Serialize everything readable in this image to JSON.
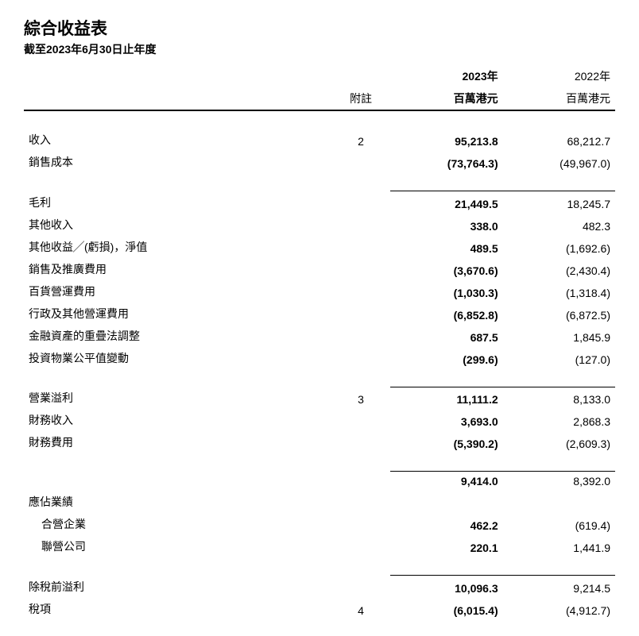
{
  "header": {
    "title": "綜合收益表",
    "subtitle": "截至2023年6月30日止年度"
  },
  "columns": {
    "note": "附註",
    "year_current_1": "2023年",
    "year_current_2": "百萬港元",
    "year_prev_1": "2022年",
    "year_prev_2": "百萬港元"
  },
  "rows": {
    "revenue": {
      "label": "收入",
      "note": "2",
      "cur": "95,213.8",
      "prev": "68,212.7"
    },
    "cost_of_sales": {
      "label": "銷售成本",
      "note": "",
      "cur": "(73,764.3)",
      "prev": "(49,967.0)"
    },
    "gross_profit": {
      "label": "毛利",
      "note": "",
      "cur": "21,449.5",
      "prev": "18,245.7"
    },
    "other_income": {
      "label": "其他收入",
      "note": "",
      "cur": "338.0",
      "prev": "482.3"
    },
    "other_gains_net": {
      "label": "其他收益╱(虧損)，淨值",
      "note": "",
      "cur": "489.5",
      "prev": "(1,692.6)"
    },
    "selling_exp": {
      "label": "銷售及推廣費用",
      "note": "",
      "cur": "(3,670.6)",
      "prev": "(2,430.4)"
    },
    "dept_op_exp": {
      "label": "百貨營運費用",
      "note": "",
      "cur": "(1,030.3)",
      "prev": "(1,318.4)"
    },
    "admin_exp": {
      "label": "行政及其他營運費用",
      "note": "",
      "cur": "(6,852.8)",
      "prev": "(6,872.5)"
    },
    "fin_asset_adj": {
      "label": "金融資產的重疊法調整",
      "note": "",
      "cur": "687.5",
      "prev": "1,845.9"
    },
    "inv_prop_fv": {
      "label": "投資物業公平值變動",
      "note": "",
      "cur": "(299.6)",
      "prev": "(127.0)"
    },
    "op_profit": {
      "label": "營業溢利",
      "note": "3",
      "cur": "11,111.2",
      "prev": "8,133.0"
    },
    "fin_income": {
      "label": "財務收入",
      "note": "",
      "cur": "3,693.0",
      "prev": "2,868.3"
    },
    "fin_costs": {
      "label": "財務費用",
      "note": "",
      "cur": "(5,390.2)",
      "prev": "(2,609.3)"
    },
    "subtotal": {
      "label": "",
      "note": "",
      "cur": "9,414.0",
      "prev": "8,392.0"
    },
    "share_results": {
      "label": "應佔業績"
    },
    "jv": {
      "label": "合營企業",
      "note": "",
      "cur": "462.2",
      "prev": "(619.4)"
    },
    "associates": {
      "label": "聯營公司",
      "note": "",
      "cur": "220.1",
      "prev": "1,441.9"
    },
    "profit_before_tax": {
      "label": "除稅前溢利",
      "note": "",
      "cur": "10,096.3",
      "prev": "9,214.5"
    },
    "tax": {
      "label": "稅項",
      "note": "4",
      "cur": "(6,015.4)",
      "prev": "(4,912.7)"
    }
  },
  "style": {
    "background_color": "#ffffff",
    "text_color": "#000000",
    "border_color": "#000000",
    "title_fontsize": 21,
    "subtitle_fontsize": 14,
    "body_fontsize": 14,
    "current_col_bold": true
  }
}
